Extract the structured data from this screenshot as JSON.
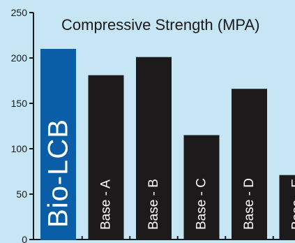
{
  "chart_data": {
    "type": "bar",
    "title": "Compressive Strength (MPA)",
    "categories": [
      "Bio-LCB",
      "Base - A",
      "Base - B",
      "Base - C",
      "Base - D",
      "Base - E"
    ],
    "values": [
      210,
      181,
      201,
      115,
      166,
      71
    ],
    "ylim": [
      0,
      250
    ],
    "yticks": [
      0,
      50,
      100,
      150,
      200,
      250
    ],
    "xlabel": "",
    "ylabel": "",
    "grid": false,
    "legend": "none",
    "colors": {
      "highlight": "#0a5ea8",
      "bars": "#1c1a1b",
      "background": "#c6e5f5",
      "axis": "#1a1a1a",
      "bar_text": "#ffffff"
    }
  }
}
